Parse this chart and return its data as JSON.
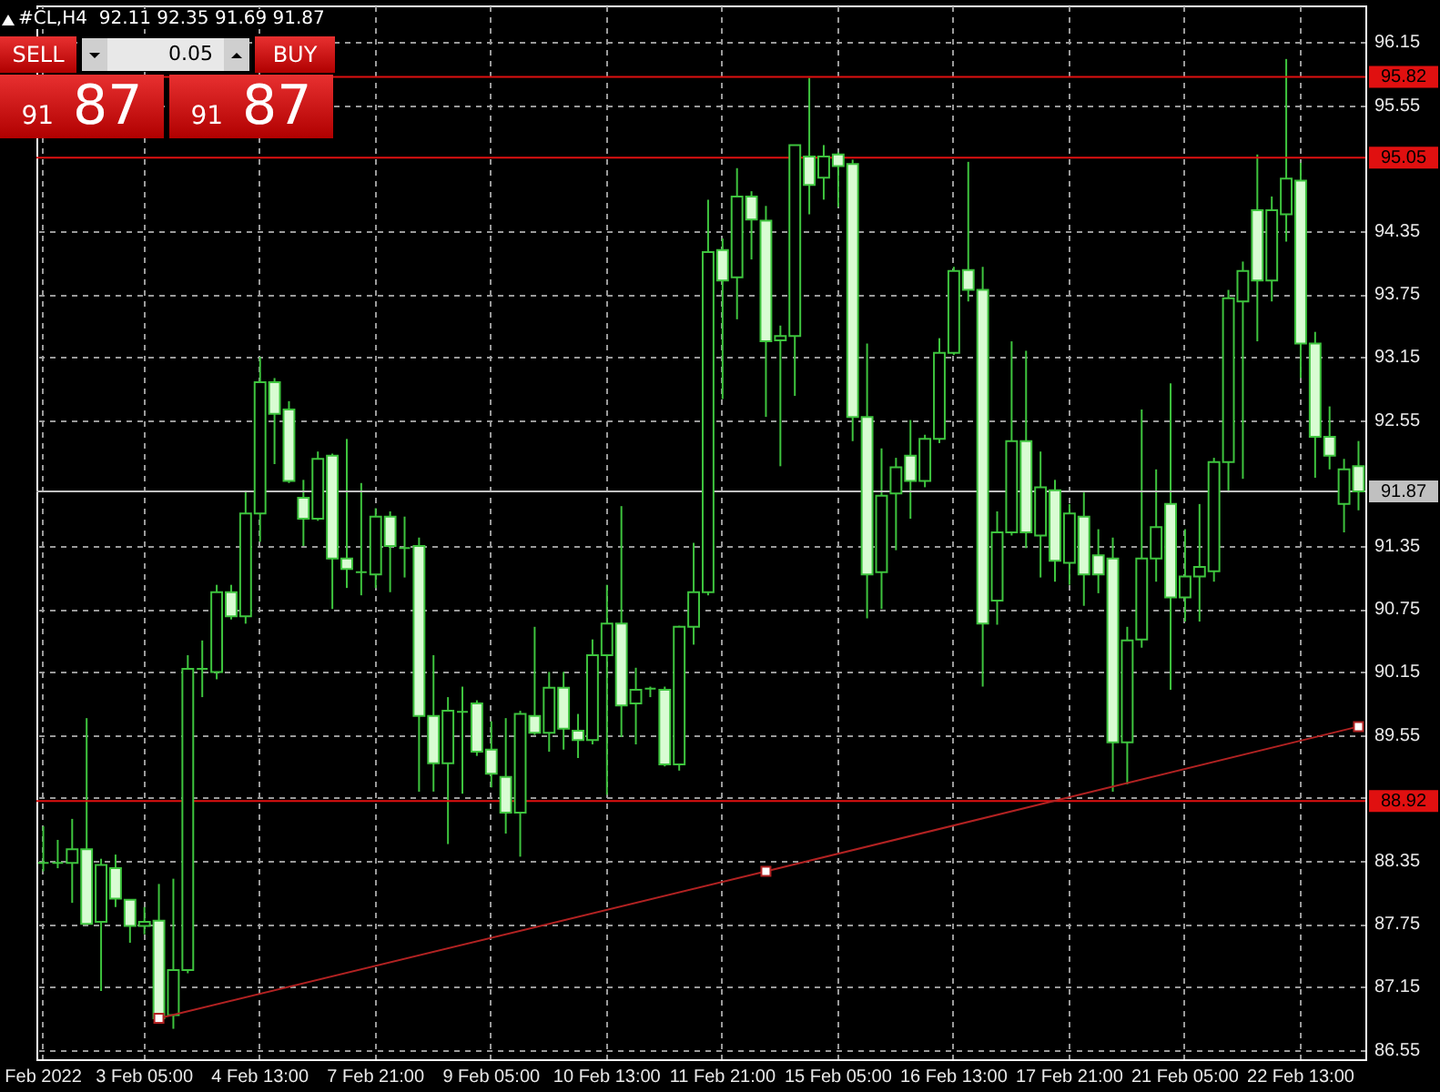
{
  "chart_data": {
    "type": "candlestick",
    "title": "#CL,H4  92.11 92.35 91.69 91.87",
    "annotations": [
      "SELL",
      "0.05",
      "BUY",
      "91 87",
      "91 87"
    ],
    "categories": [
      "Feb 2022",
      null,
      null,
      null,
      null,
      null,
      null,
      "3 Feb 05:00",
      null,
      null,
      null,
      null,
      null,
      null,
      null,
      "4 Feb 13:00",
      null,
      null,
      null,
      null,
      null,
      null,
      null,
      "7 Feb 21:00",
      null,
      null,
      null,
      null,
      null,
      null,
      null,
      "9 Feb 05:00",
      null,
      null,
      null,
      null,
      null,
      null,
      null,
      "10 Feb 13:00",
      null,
      null,
      null,
      null,
      null,
      null,
      null,
      "11 Feb 21:00",
      null,
      null,
      null,
      null,
      null,
      null,
      null,
      "15 Feb 05:00",
      null,
      null,
      null,
      null,
      null,
      null,
      null,
      "16 Feb 13:00",
      null,
      null,
      null,
      null,
      null,
      null,
      null,
      "17 Feb 21:00",
      null,
      null,
      null,
      null,
      null,
      null,
      null,
      "21 Feb 05:00",
      null,
      null,
      null,
      null,
      null,
      null,
      null,
      "22 Feb 13:00",
      null,
      null,
      null,
      null
    ],
    "color": "#3ec43e",
    "ohlc": [
      [
        88.33,
        88.68,
        88.25,
        88.33
      ],
      [
        88.33,
        88.55,
        88.28,
        88.33
      ],
      [
        88.33,
        88.75,
        87.95,
        88.46
      ],
      [
        88.46,
        89.71,
        87.75,
        87.75
      ],
      [
        87.77,
        88.37,
        87.11,
        88.31
      ],
      [
        88.28,
        88.41,
        87.91,
        87.99
      ],
      [
        87.98,
        87.98,
        87.57,
        87.73
      ],
      [
        87.73,
        87.91,
        87.65,
        87.77
      ],
      [
        87.78,
        88.13,
        86.81,
        86.85
      ],
      [
        86.88,
        88.18,
        86.75,
        87.31
      ],
      [
        87.31,
        90.31,
        87.28,
        90.18
      ],
      [
        90.18,
        90.45,
        89.91,
        90.18
      ],
      [
        90.15,
        90.98,
        90.08,
        90.91
      ],
      [
        90.91,
        90.98,
        90.65,
        90.68
      ],
      [
        90.68,
        91.88,
        90.61,
        91.66
      ],
      [
        91.66,
        93.15,
        91.39,
        92.91
      ],
      [
        92.91,
        92.95,
        92.13,
        92.61
      ],
      [
        92.65,
        92.73,
        91.95,
        91.97
      ],
      [
        91.81,
        91.98,
        91.35,
        91.61
      ],
      [
        91.61,
        92.25,
        91.59,
        92.18
      ],
      [
        92.21,
        92.23,
        90.75,
        91.23
      ],
      [
        91.23,
        92.37,
        90.95,
        91.13
      ],
      [
        91.1,
        91.95,
        90.88,
        91.1
      ],
      [
        91.08,
        91.71,
        90.95,
        91.63
      ],
      [
        91.63,
        91.68,
        90.91,
        91.35
      ],
      [
        91.33,
        91.63,
        91.05,
        91.33
      ],
      [
        91.35,
        91.43,
        89.01,
        89.73
      ],
      [
        89.73,
        90.31,
        89.01,
        89.28
      ],
      [
        89.28,
        89.91,
        88.51,
        89.78
      ],
      [
        89.77,
        90.01,
        88.99,
        89.77
      ],
      [
        89.85,
        89.88,
        89.35,
        89.39
      ],
      [
        89.41,
        89.68,
        89.05,
        89.18
      ],
      [
        89.15,
        89.71,
        88.61,
        88.81
      ],
      [
        88.81,
        89.78,
        88.39,
        89.75
      ],
      [
        89.73,
        90.58,
        89.55,
        89.57
      ],
      [
        89.57,
        90.15,
        89.39,
        90.0
      ],
      [
        90.0,
        90.15,
        89.41,
        89.61
      ],
      [
        89.59,
        89.75,
        89.33,
        89.5
      ],
      [
        89.5,
        90.46,
        89.46,
        90.31
      ],
      [
        90.31,
        90.98,
        88.98,
        90.61
      ],
      [
        90.61,
        91.73,
        89.53,
        89.83
      ],
      [
        89.85,
        90.19,
        89.46,
        89.98
      ],
      [
        89.99,
        90.01,
        89.91,
        89.99
      ],
      [
        89.98,
        90.01,
        89.25,
        89.27
      ],
      [
        89.27,
        90.59,
        89.21,
        90.58
      ],
      [
        90.58,
        91.38,
        90.41,
        90.91
      ],
      [
        90.91,
        94.65,
        90.88,
        94.15
      ],
      [
        94.17,
        94.28,
        92.75,
        93.88
      ],
      [
        93.91,
        94.95,
        93.51,
        94.68
      ],
      [
        94.68,
        94.73,
        94.08,
        94.46
      ],
      [
        94.45,
        94.59,
        92.58,
        93.3
      ],
      [
        93.31,
        93.45,
        92.11,
        93.35
      ],
      [
        93.35,
        95.17,
        92.78,
        95.17
      ],
      [
        95.06,
        95.81,
        94.51,
        94.79
      ],
      [
        94.86,
        95.17,
        94.65,
        95.06
      ],
      [
        95.08,
        95.1,
        94.58,
        94.97
      ],
      [
        94.99,
        95.03,
        92.35,
        92.58
      ],
      [
        92.58,
        93.28,
        90.66,
        91.08
      ],
      [
        91.1,
        92.28,
        90.75,
        91.83
      ],
      [
        91.85,
        92.19,
        91.31,
        92.1
      ],
      [
        92.21,
        92.55,
        91.61,
        91.97
      ],
      [
        91.97,
        92.41,
        91.91,
        92.37
      ],
      [
        92.37,
        93.33,
        92.33,
        93.19
      ],
      [
        93.19,
        94.01,
        93.17,
        93.97
      ],
      [
        93.98,
        95.01,
        93.68,
        93.79
      ],
      [
        93.79,
        94.01,
        90.01,
        90.61
      ],
      [
        90.83,
        91.68,
        90.6,
        91.48
      ],
      [
        91.48,
        93.3,
        91.45,
        92.35
      ],
      [
        92.35,
        93.21,
        91.33,
        91.48
      ],
      [
        91.45,
        92.25,
        91.05,
        91.91
      ],
      [
        91.88,
        91.98,
        91.01,
        91.21
      ],
      [
        91.19,
        91.75,
        90.98,
        91.66
      ],
      [
        91.63,
        91.86,
        90.78,
        91.08
      ],
      [
        91.26,
        91.51,
        90.9,
        91.08
      ],
      [
        91.23,
        91.43,
        89.01,
        89.48
      ],
      [
        89.48,
        90.58,
        89.08,
        90.45
      ],
      [
        90.46,
        92.65,
        90.38,
        91.23
      ],
      [
        91.23,
        92.08,
        91.01,
        91.53
      ],
      [
        91.75,
        92.9,
        89.98,
        90.86
      ],
      [
        90.86,
        91.51,
        90.63,
        91.06
      ],
      [
        91.06,
        91.75,
        90.63,
        91.15
      ],
      [
        91.11,
        92.19,
        91.01,
        92.15
      ],
      [
        92.15,
        93.79,
        91.86,
        93.71
      ],
      [
        93.68,
        94.06,
        91.99,
        93.97
      ],
      [
        94.55,
        95.08,
        93.3,
        93.88
      ],
      [
        93.88,
        94.68,
        93.68,
        94.55
      ],
      [
        94.51,
        95.99,
        94.25,
        94.85
      ],
      [
        94.83,
        95.0,
        92.95,
        93.28
      ],
      [
        93.28,
        93.39,
        92.0,
        92.39
      ],
      [
        92.39,
        92.68,
        92.08,
        92.21
      ],
      [
        91.75,
        92.18,
        91.48,
        92.08
      ],
      [
        92.11,
        92.35,
        91.69,
        91.87
      ]
    ],
    "series": [
      {
        "type": "line",
        "color": "#b22222",
        "marker": "square",
        "values": [
          null,
          null,
          null,
          null,
          null,
          null,
          null,
          null,
          86.85,
          null,
          null,
          null,
          null,
          null,
          null,
          null,
          null,
          null,
          null,
          null,
          null,
          null,
          null,
          null,
          null,
          null,
          null,
          null,
          null,
          null,
          null,
          null,
          null,
          null,
          null,
          null,
          null,
          null,
          null,
          null,
          null,
          null,
          null,
          null,
          null,
          null,
          null,
          null,
          null,
          null,
          88.25,
          null,
          null,
          null,
          null,
          null,
          null,
          null,
          null,
          null,
          null,
          null,
          null,
          null,
          null,
          null,
          null,
          null,
          null,
          null,
          null,
          null,
          null,
          null,
          null,
          null,
          null,
          null,
          null,
          null,
          null,
          null,
          null,
          null,
          null,
          null,
          null,
          null,
          null,
          null,
          null,
          89.63
        ]
      }
    ],
    "ylim": [
      86.46,
      96.5
    ],
    "yticks": [
      86.55,
      87.15,
      87.75,
      88.35,
      {
        "value": 88.95,
        "label": null
      },
      89.55,
      90.15,
      90.75,
      91.35,
      92.55,
      93.15,
      93.75,
      94.35,
      95.55,
      96.15
    ],
    "grid": true,
    "ref_lines": [
      {
        "axis": "y",
        "value": 95.82,
        "label": "95.82",
        "color": "#e01010"
      },
      {
        "axis": "y",
        "value": 95.05,
        "label": "95.05",
        "color": "#e01010"
      },
      {
        "axis": "y",
        "value": 88.92,
        "label": "88.92",
        "color": "#e01010"
      },
      {
        "axis": "y",
        "value": 91.87,
        "label": "91.87",
        "color": "#c0c0c0"
      }
    ]
  }
}
